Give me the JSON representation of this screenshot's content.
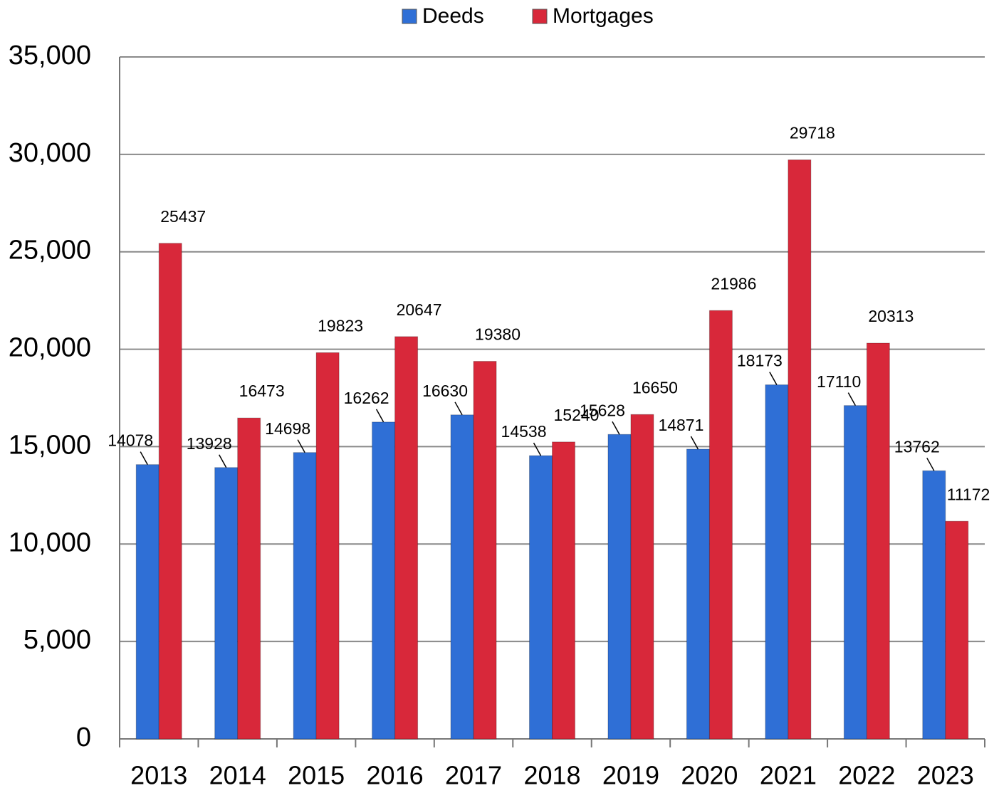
{
  "chart_data": {
    "type": "bar",
    "categories": [
      "2013",
      "2014",
      "2015",
      "2016",
      "2017",
      "2018",
      "2019",
      "2020",
      "2021",
      "2022",
      "2023"
    ],
    "series": [
      {
        "name": "Deeds",
        "color": "#2f6fd6",
        "values": [
          14078,
          13928,
          14698,
          16262,
          16630,
          14538,
          15628,
          14871,
          18173,
          17110,
          13762
        ]
      },
      {
        "name": "Mortgages",
        "color": "#d8283a",
        "values": [
          25437,
          16473,
          19823,
          20647,
          19380,
          15240,
          16650,
          21986,
          29718,
          20313,
          11172
        ]
      }
    ],
    "ylim": [
      0,
      35000
    ],
    "yticks": [
      0,
      {
        "value": 5000,
        "label": "5,000"
      },
      {
        "value": 10000,
        "label": "10,000"
      },
      {
        "value": 15000,
        "label": "15,000"
      },
      {
        "value": 20000,
        "label": "20,000"
      },
      {
        "value": 25000,
        "label": "25,000"
      },
      {
        "value": 30000,
        "label": "30,000"
      },
      {
        "value": 35000,
        "label": "35,000"
      }
    ],
    "grid": true,
    "legend": "top"
  }
}
